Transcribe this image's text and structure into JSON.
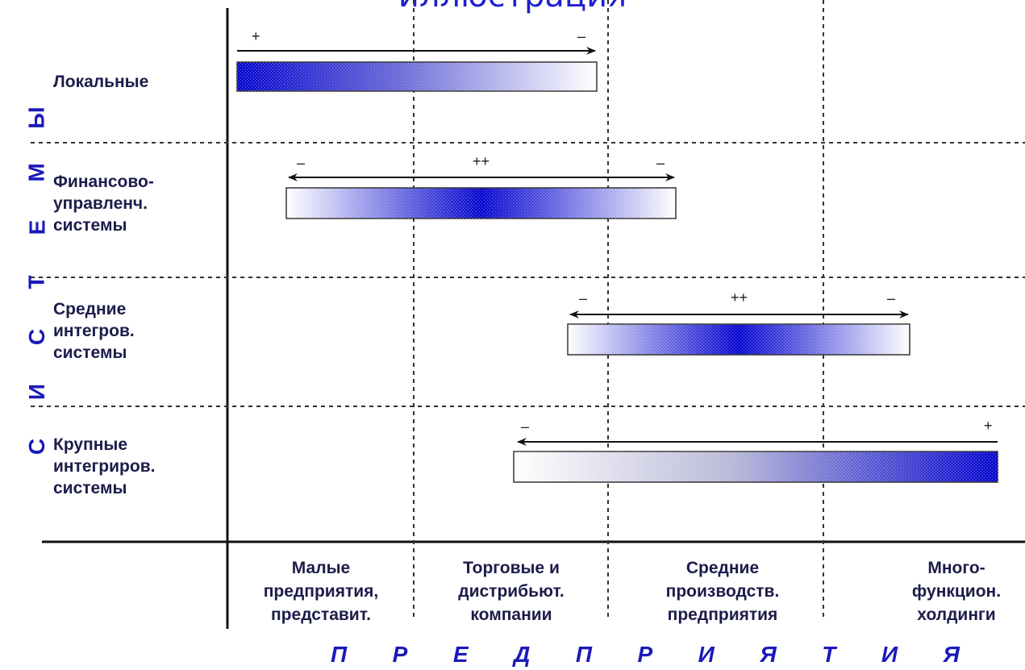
{
  "title": "иллюстрация",
  "y_axis_letters": [
    "Ы",
    "М",
    "Е",
    "Т",
    "С",
    "И",
    "С"
  ],
  "x_axis_letters": [
    "П",
    "Р",
    "Е",
    "Д",
    "П",
    "Р",
    "И",
    "Я",
    "Т",
    "И",
    "Я"
  ],
  "rows": [
    {
      "label": "Локальные"
    },
    {
      "label": "Финансово-\nуправленч.\nсистемы"
    },
    {
      "label": "Средние\nинтегров.\nсистемы"
    },
    {
      "label": "Крупные\nинтегриров.\nсистемы"
    }
  ],
  "columns": [
    {
      "label": "Малые\nпредприятия,\nпредставит."
    },
    {
      "label": "Торговые и\nдистрибьют.\nкомпании"
    },
    {
      "label": "Средние\nпроизводств.\nпредприятия"
    },
    {
      "label": "Много-\nфункцион.\nхолдинги"
    }
  ],
  "bars": [
    {
      "row": "Локальные",
      "left_sign": "+",
      "right_sign": "–",
      "center_sign": ""
    },
    {
      "row": "Финансово-управленч. системы",
      "left_sign": "–",
      "right_sign": "–",
      "center_sign": "++"
    },
    {
      "row": "Средние интегров. системы",
      "left_sign": "–",
      "right_sign": "–",
      "center_sign": "++"
    },
    {
      "row": "Крупные интегриров. системы",
      "left_sign": "–",
      "right_sign": "+",
      "center_sign": ""
    }
  ],
  "colors": {
    "accent": "#1a1ab8",
    "bar_dark": "#0a0ad0",
    "text": "#1c1c4a"
  }
}
